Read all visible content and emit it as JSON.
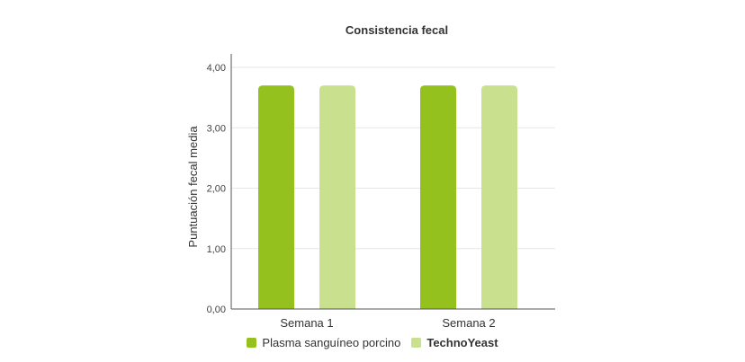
{
  "chart_data": {
    "type": "bar",
    "title": "Consistencia fecal",
    "xlabel": "",
    "ylabel": "Puntuación fecal media",
    "categories": [
      "Semana 1",
      "Semana 2"
    ],
    "series": [
      {
        "name": "Plasma sanguíneo porcino",
        "values": [
          3.7,
          3.7
        ],
        "color": "#95c11f"
      },
      {
        "name": "TechnoYeast",
        "values": [
          3.7,
          3.7
        ],
        "color": "#c9e08f"
      }
    ],
    "ylim": [
      0,
      4
    ],
    "yticks": [
      "0,00",
      "1,00",
      "2,00",
      "3,00",
      "4,00"
    ],
    "ytick_values": [
      0,
      1,
      2,
      3,
      4
    ],
    "grid": true,
    "legend_position": "bottom"
  }
}
